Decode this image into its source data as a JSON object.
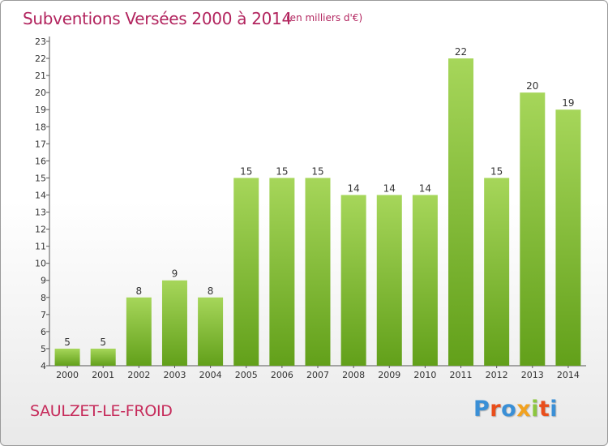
{
  "header": {
    "title": "Subventions Versées 2000 à 2014",
    "unit_note": "(en milliers d'€)"
  },
  "footer": {
    "commune": "SAULZET-LE-FROID",
    "logo_text": "Proxiti",
    "logo_colors": [
      "#3a8fd6",
      "#e94e1b",
      "#3a8fd6",
      "#f2a21f",
      "#8cc63f",
      "#e94e1b",
      "#3a8fd6"
    ]
  },
  "colors": {
    "title": "#b2245e",
    "bar_light": "#a6d65a",
    "bar_dark": "#62a01a"
  },
  "chart_data": {
    "type": "bar",
    "categories": [
      "2000",
      "2001",
      "2002",
      "2003",
      "2004",
      "2005",
      "2006",
      "2007",
      "2008",
      "2009",
      "2010",
      "2011",
      "2012",
      "2013",
      "2014"
    ],
    "values": [
      5,
      5,
      8,
      9,
      8,
      15,
      15,
      15,
      14,
      14,
      14,
      22,
      15,
      20,
      19
    ],
    "ylim": [
      4,
      23
    ],
    "y_ticks": [
      4,
      5,
      6,
      7,
      8,
      9,
      10,
      11,
      12,
      13,
      14,
      15,
      16,
      17,
      18,
      19,
      20,
      21,
      22,
      23
    ],
    "grid": false,
    "xlabel": "",
    "ylabel": ""
  }
}
